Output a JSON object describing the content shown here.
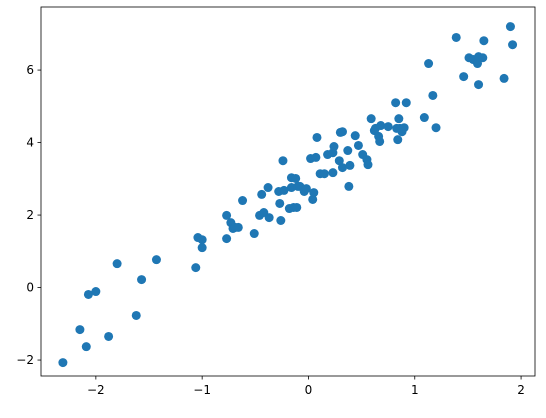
{
  "chart_data": {
    "type": "scatter",
    "color": "#1f77b4",
    "x": [
      -2.31,
      -2.15,
      -2.09,
      -2.07,
      -2.0,
      -1.88,
      -1.8,
      -1.62,
      -1.57,
      -1.43,
      -1.06,
      -1.04,
      -1.0,
      -1.0,
      -0.77,
      -0.77,
      -0.73,
      -0.71,
      -0.69,
      -0.66,
      -0.62,
      -0.51,
      -0.46,
      -0.44,
      -0.42,
      -0.38,
      -0.37,
      -0.28,
      -0.27,
      -0.26,
      -0.23,
      -0.24,
      -0.18,
      -0.16,
      -0.16,
      -0.14,
      -0.12,
      -0.11,
      -0.1,
      -0.08,
      -0.04,
      -0.02,
      0.02,
      0.04,
      0.05,
      0.07,
      0.08,
      0.11,
      0.15,
      0.18,
      0.23,
      0.23,
      0.24,
      0.29,
      0.3,
      0.32,
      0.32,
      0.37,
      0.38,
      0.39,
      0.44,
      0.47,
      0.51,
      0.55,
      0.56,
      0.59,
      0.62,
      0.63,
      0.66,
      0.67,
      0.68,
      0.75,
      0.82,
      0.83,
      0.84,
      0.85,
      0.86,
      0.88,
      0.9,
      0.92,
      1.09,
      1.13,
      1.17,
      1.2,
      1.39,
      1.46,
      1.51,
      1.55,
      1.59,
      1.6,
      1.6,
      1.64,
      1.65,
      1.84,
      1.9,
      1.92
    ],
    "y": [
      -2.07,
      -1.16,
      -1.63,
      -0.19,
      -0.11,
      -1.35,
      0.66,
      -0.77,
      0.22,
      0.77,
      0.55,
      1.38,
      1.32,
      1.1,
      1.35,
      1.99,
      1.79,
      1.63,
      1.66,
      1.66,
      2.4,
      1.49,
      1.99,
      2.57,
      2.07,
      2.76,
      1.93,
      2.65,
      2.32,
      1.85,
      2.68,
      3.5,
      2.18,
      3.03,
      2.76,
      2.21,
      3.01,
      2.21,
      2.79,
      2.79,
      2.65,
      2.73,
      3.56,
      2.43,
      2.62,
      3.59,
      4.14,
      3.14,
      3.14,
      3.67,
      3.72,
      3.17,
      3.89,
      3.5,
      4.28,
      4.3,
      3.31,
      3.78,
      2.79,
      3.37,
      4.19,
      3.92,
      3.67,
      3.53,
      3.39,
      4.66,
      4.33,
      4.39,
      4.17,
      4.03,
      4.47,
      4.44,
      5.1,
      4.39,
      4.08,
      4.66,
      4.39,
      4.3,
      4.41,
      5.1,
      4.69,
      6.18,
      5.3,
      4.41,
      6.9,
      5.82,
      6.34,
      6.29,
      6.18,
      6.37,
      5.6,
      6.34,
      6.81,
      5.77,
      7.2,
      6.7
    ],
    "xlim": [
      -2.516,
      2.131
    ],
    "ylim": [
      -2.44,
      7.74
    ],
    "xticks": [
      {
        "value": -2,
        "label": "−2"
      },
      {
        "value": -1,
        "label": "−1"
      },
      0,
      1,
      2
    ],
    "yticks": [
      {
        "value": -2,
        "label": "−2"
      },
      0,
      2,
      4,
      6
    ],
    "grid": false
  }
}
